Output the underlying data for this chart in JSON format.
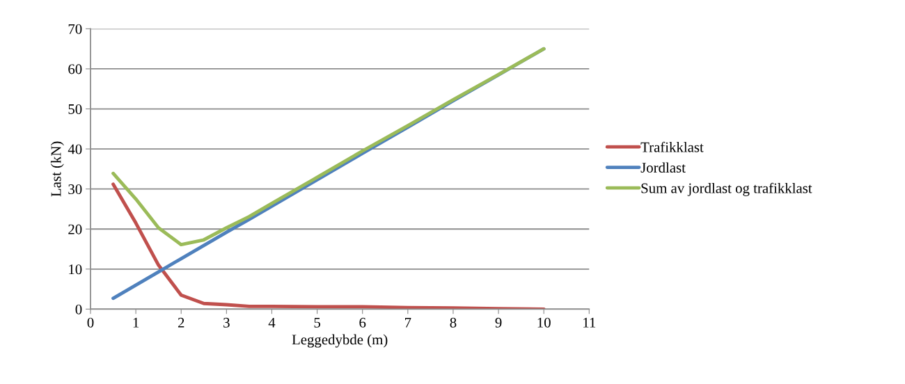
{
  "chart_data": {
    "type": "line",
    "xlabel": "Leggedybde (m)",
    "ylabel": "Last (kN)",
    "x": [
      0.5,
      1,
      1.5,
      2,
      2.5,
      3,
      3.5,
      4,
      5,
      6,
      7,
      8,
      9,
      10
    ],
    "series": [
      {
        "name": "Trafikklast",
        "color": "#c0504d",
        "values": [
          31.2,
          21.5,
          11,
          3.5,
          1.4,
          1.1,
          0.7,
          0.7,
          0.6,
          0.6,
          0.4,
          0.3,
          0.1,
          0.0
        ]
      },
      {
        "name": "Jordlast",
        "color": "#4f81bd",
        "values": [
          2.7,
          6.0,
          9.3,
          12.6,
          15.9,
          19.2,
          22.4,
          25.7,
          32.3,
          38.9,
          45.4,
          52.0,
          58.5,
          65
        ]
      },
      {
        "name": "Sum av jordlast og trafikklast",
        "color": "#9bbb59",
        "values": [
          33.9,
          27.5,
          20.3,
          16.1,
          17.3,
          20.3,
          23.1,
          26.4,
          32.9,
          39.5,
          45.8,
          52.3,
          58.6,
          65.0
        ]
      }
    ],
    "xlim": [
      0,
      11
    ],
    "xticks": [
      0,
      1,
      2,
      3,
      4,
      5,
      6,
      7,
      8,
      9,
      10,
      11
    ],
    "ylim": [
      0,
      70
    ],
    "yticks": [
      0,
      10,
      20,
      30,
      40,
      50,
      60,
      70
    ],
    "grid": "y",
    "legend": "right",
    "marker": "none",
    "line_style": "solid"
  }
}
